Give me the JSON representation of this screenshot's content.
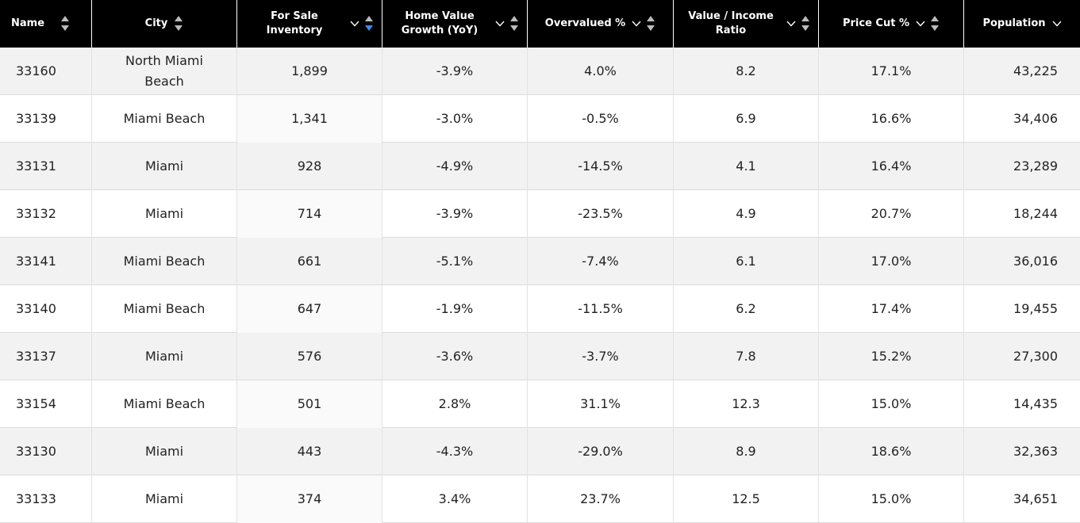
{
  "table": {
    "headers": [
      "Name",
      "City",
      "For Sale Inventory",
      "Home Value Growth (YoY)",
      "Overvalued %",
      "Value / Income Ratio",
      "Price Cut %",
      "Population"
    ],
    "rows": [
      [
        "33160",
        "North Miami Beach",
        "1,899",
        "-3.9%",
        "4.0%",
        "8.2",
        "17.1%",
        "43,225"
      ],
      [
        "33139",
        "Miami Beach",
        "1,341",
        "-3.0%",
        "-0.5%",
        "6.9",
        "16.6%",
        "34,406"
      ],
      [
        "33131",
        "Miami",
        "928",
        "-4.9%",
        "-14.5%",
        "4.1",
        "16.4%",
        "23,289"
      ],
      [
        "33132",
        "Miami",
        "714",
        "-3.9%",
        "-23.5%",
        "4.9",
        "20.7%",
        "18,244"
      ],
      [
        "33141",
        "Miami Beach",
        "661",
        "-5.1%",
        "-7.4%",
        "6.1",
        "17.0%",
        "36,016"
      ],
      [
        "33140",
        "Miami Beach",
        "647",
        "-1.9%",
        "-11.5%",
        "6.2",
        "17.4%",
        "19,455"
      ],
      [
        "33137",
        "Miami",
        "576",
        "-3.6%",
        "-3.7%",
        "7.8",
        "15.2%",
        "27,300"
      ],
      [
        "33154",
        "Miami Beach",
        "501",
        "2.8%",
        "31.1%",
        "12.3",
        "15.0%",
        "14,435"
      ],
      [
        "33130",
        "Miami",
        "443",
        "-4.3%",
        "-29.0%",
        "8.9",
        "18.6%",
        "32,363"
      ],
      [
        "33133",
        "Miami",
        "374",
        "3.4%",
        "23.7%",
        "12.5",
        "15.0%",
        "34,651"
      ]
    ]
  }
}
